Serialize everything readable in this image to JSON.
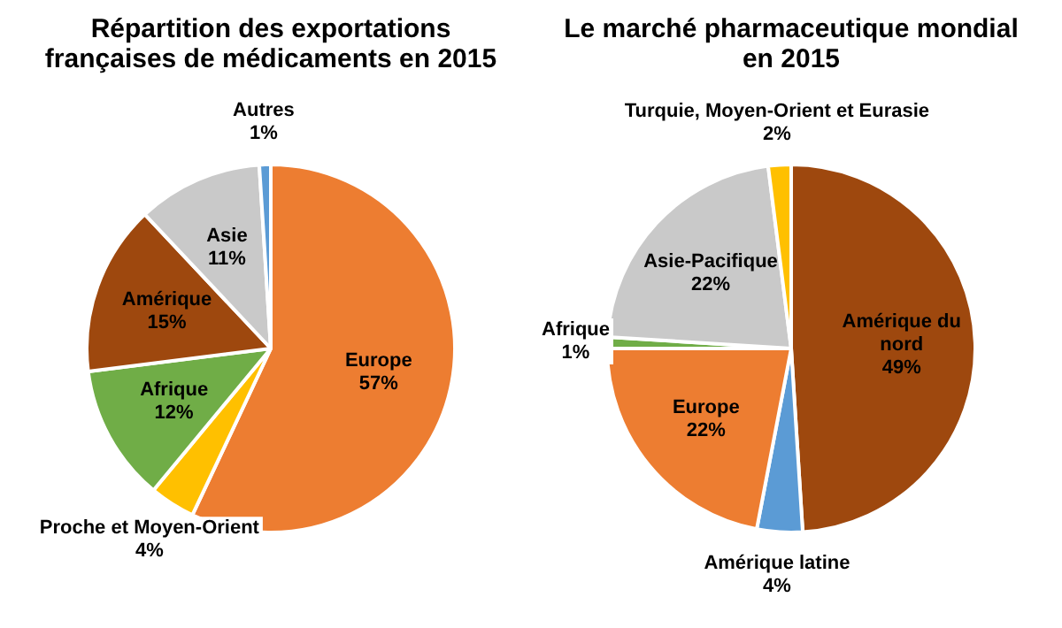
{
  "chart_data": [
    {
      "type": "pie",
      "title": "Répartition des exportations françaises de médicaments en 2015",
      "categories": [
        "Europe",
        "Proche et Moyen-Orient",
        "Afrique",
        "Amérique",
        "Asie",
        "Autres"
      ],
      "values": [
        57,
        4,
        12,
        15,
        11,
        1
      ],
      "colors": [
        "#ed7d31",
        "#ffc000",
        "#70ad47",
        "#9e480e",
        "#c9c9c9",
        "#5b9bd5"
      ],
      "value_labels": [
        "57%",
        "4%",
        "12%",
        "15%",
        "11%",
        "1%"
      ],
      "legend": false
    },
    {
      "type": "pie",
      "title": "Le marché pharmaceutique mondial en 2015",
      "categories": [
        "Amérique du nord",
        "Amérique latine",
        "Europe",
        "Afrique",
        "Asie-Pacifique",
        "Turquie, Moyen-Orient et Eurasie"
      ],
      "values": [
        49,
        4,
        22,
        1,
        22,
        2
      ],
      "colors": [
        "#9e480e",
        "#5b9bd5",
        "#ed7d31",
        "#70ad47",
        "#c9c9c9",
        "#ffc000"
      ],
      "value_labels": [
        "49%",
        "4%",
        "22%",
        "1%",
        "22%",
        "2%"
      ],
      "legend": false
    }
  ]
}
